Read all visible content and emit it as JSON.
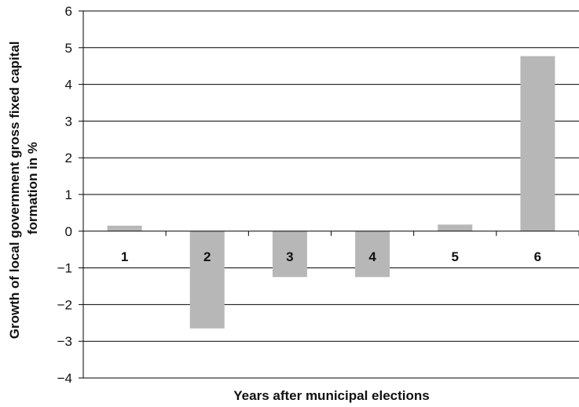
{
  "chart_data": {
    "type": "bar",
    "categories": [
      "1",
      "2",
      "3",
      "4",
      "5",
      "6"
    ],
    "values": [
      0.15,
      -2.65,
      -1.25,
      -1.25,
      0.18,
      4.77
    ],
    "xlabel": "Years after municipal elections",
    "ylabel_lines": [
      "Growth of local government gross fixed capital",
      "formation  in %"
    ],
    "ylim": [
      -4,
      6
    ],
    "yticks": [
      -4,
      -3,
      -2,
      -1,
      0,
      1,
      2,
      3,
      4,
      5,
      6
    ],
    "ytick_labels": [
      "−4",
      "−3",
      "−2",
      "−1",
      "0",
      "1",
      "2",
      "3",
      "4",
      "5",
      "6"
    ],
    "grid": true,
    "bar_color": "#b7b7b7"
  }
}
